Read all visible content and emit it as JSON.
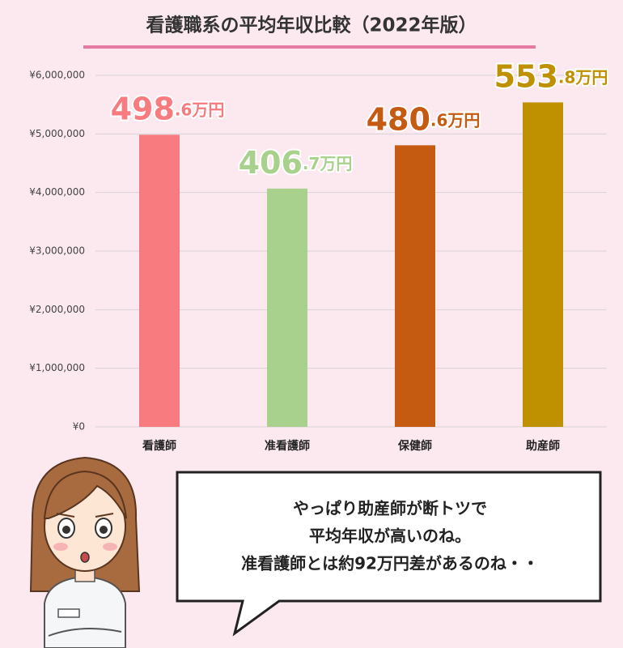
{
  "chart_data": {
    "type": "bar",
    "title": "看護職系の平均年収比較（2022年版）",
    "categories": [
      "看護師",
      "准看護師",
      "保健師",
      "助産師"
    ],
    "values": [
      4986000,
      4067000,
      4806000,
      5538000
    ],
    "value_labels": [
      "498.6万円",
      "406.7万円",
      "480.6万円",
      "553.8万円"
    ],
    "colors": [
      "#f77b7f",
      "#a9d18e",
      "#c55a11",
      "#bf9000"
    ],
    "ylim": [
      0,
      6000000
    ],
    "yticks": [
      {
        "value": 0,
        "label": "¥0"
      },
      {
        "value": 1000000,
        "label": "¥1,000,000"
      },
      {
        "value": 2000000,
        "label": "¥2,000,000"
      },
      {
        "value": 3000000,
        "label": "¥3,000,000"
      },
      {
        "value": 4000000,
        "label": "¥4,000,000"
      },
      {
        "value": 5000000,
        "label": "¥5,000,000"
      },
      {
        "value": 6000000,
        "label": "¥6,000,000"
      }
    ],
    "grid": true
  },
  "speech_bubble": {
    "lines": [
      "やっぱり助産師が断トツで",
      "平均年収が高いのね。",
      "准看護師とは約92万円差があるのね・・"
    ]
  }
}
